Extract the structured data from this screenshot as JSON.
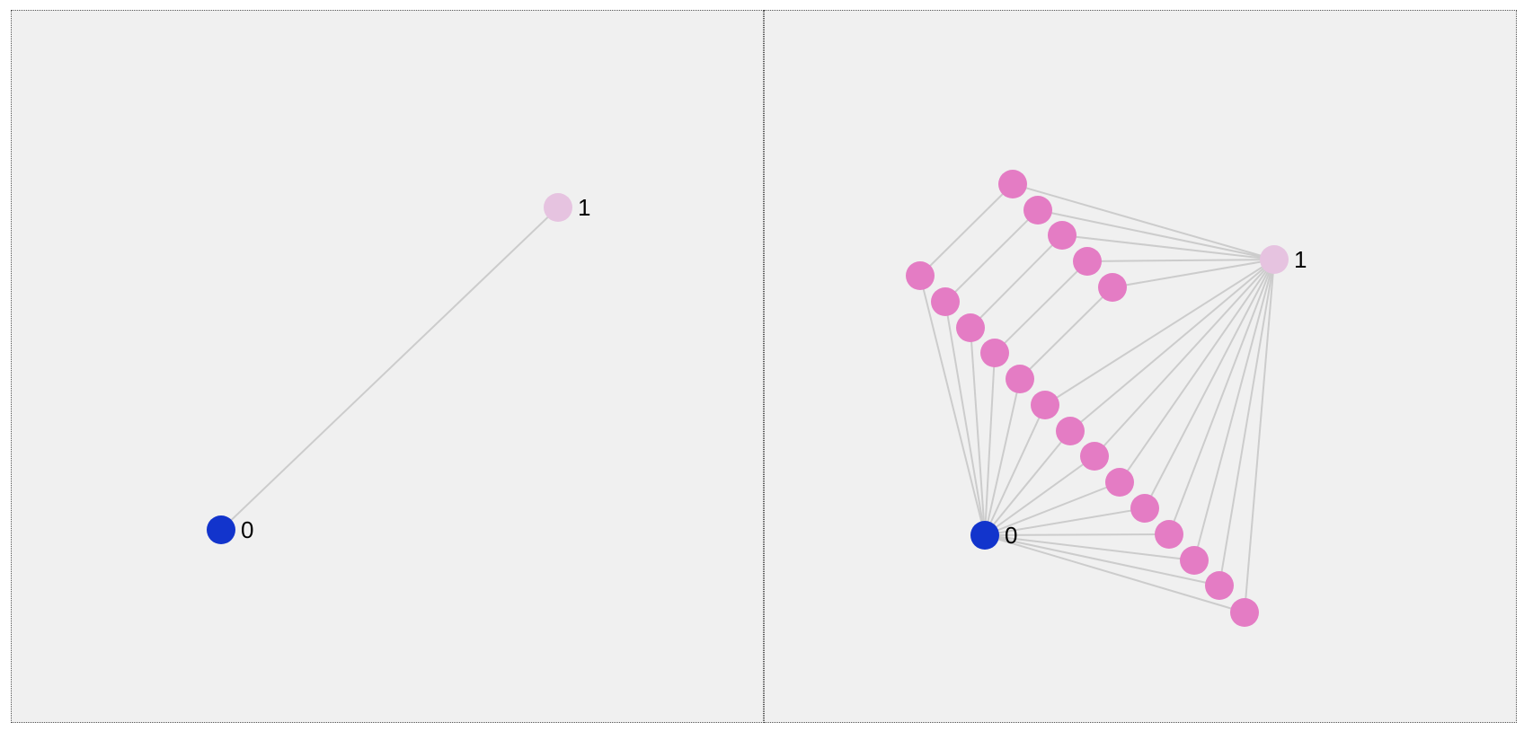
{
  "colors": {
    "background": "#f0f0f0",
    "edge": "#cccccc",
    "node_source": "#1234cc",
    "node_sink": "#e6c3e0",
    "node_inner": "#e47cc4"
  },
  "panels": [
    {
      "name": "left",
      "nodes": [
        {
          "id": "n0",
          "label": "0",
          "role": "source"
        },
        {
          "id": "n1",
          "label": "1",
          "role": "sink"
        }
      ],
      "edges": [
        [
          "n0",
          "n1"
        ]
      ]
    },
    {
      "name": "right",
      "nodes": [
        {
          "id": "n0",
          "label": "0",
          "role": "source"
        },
        {
          "id": "n1",
          "label": "1",
          "role": "sink"
        },
        {
          "id": "a1",
          "label": "",
          "role": "inner"
        },
        {
          "id": "a2",
          "label": "",
          "role": "inner"
        },
        {
          "id": "a3",
          "label": "",
          "role": "inner"
        },
        {
          "id": "a4",
          "label": "",
          "role": "inner"
        },
        {
          "id": "a5",
          "label": "",
          "role": "inner"
        },
        {
          "id": "b1",
          "label": "",
          "role": "inner"
        },
        {
          "id": "b2",
          "label": "",
          "role": "inner"
        },
        {
          "id": "b3",
          "label": "",
          "role": "inner"
        },
        {
          "id": "b4",
          "label": "",
          "role": "inner"
        },
        {
          "id": "b5",
          "label": "",
          "role": "inner"
        },
        {
          "id": "b6",
          "label": "",
          "role": "inner"
        },
        {
          "id": "b7",
          "label": "",
          "role": "inner"
        },
        {
          "id": "b8",
          "label": "",
          "role": "inner"
        },
        {
          "id": "b9",
          "label": "",
          "role": "inner"
        },
        {
          "id": "b10",
          "label": "",
          "role": "inner"
        },
        {
          "id": "b11",
          "label": "",
          "role": "inner"
        },
        {
          "id": "b12",
          "label": "",
          "role": "inner"
        },
        {
          "id": "b13",
          "label": "",
          "role": "inner"
        },
        {
          "id": "b14",
          "label": "",
          "role": "inner"
        }
      ],
      "edges": [
        [
          "a1",
          "n1"
        ],
        [
          "a2",
          "n1"
        ],
        [
          "a3",
          "n1"
        ],
        [
          "a4",
          "n1"
        ],
        [
          "a5",
          "n1"
        ],
        [
          "a1",
          "b1"
        ],
        [
          "a2",
          "b2"
        ],
        [
          "a3",
          "b3"
        ],
        [
          "a4",
          "b4"
        ],
        [
          "a5",
          "b5"
        ],
        [
          "b1",
          "n0"
        ],
        [
          "b2",
          "n0"
        ],
        [
          "b3",
          "n0"
        ],
        [
          "b4",
          "n0"
        ],
        [
          "b5",
          "n0"
        ],
        [
          "b6",
          "n0"
        ],
        [
          "b7",
          "n0"
        ],
        [
          "b8",
          "n0"
        ],
        [
          "b9",
          "n0"
        ],
        [
          "b10",
          "n0"
        ],
        [
          "b11",
          "n0"
        ],
        [
          "b12",
          "n0"
        ],
        [
          "b13",
          "n0"
        ],
        [
          "b14",
          "n0"
        ],
        [
          "b6",
          "n1"
        ],
        [
          "b7",
          "n1"
        ],
        [
          "b8",
          "n1"
        ],
        [
          "b9",
          "n1"
        ],
        [
          "b10",
          "n1"
        ],
        [
          "b11",
          "n1"
        ],
        [
          "b12",
          "n1"
        ],
        [
          "b13",
          "n1"
        ],
        [
          "b14",
          "n1"
        ]
      ]
    }
  ]
}
